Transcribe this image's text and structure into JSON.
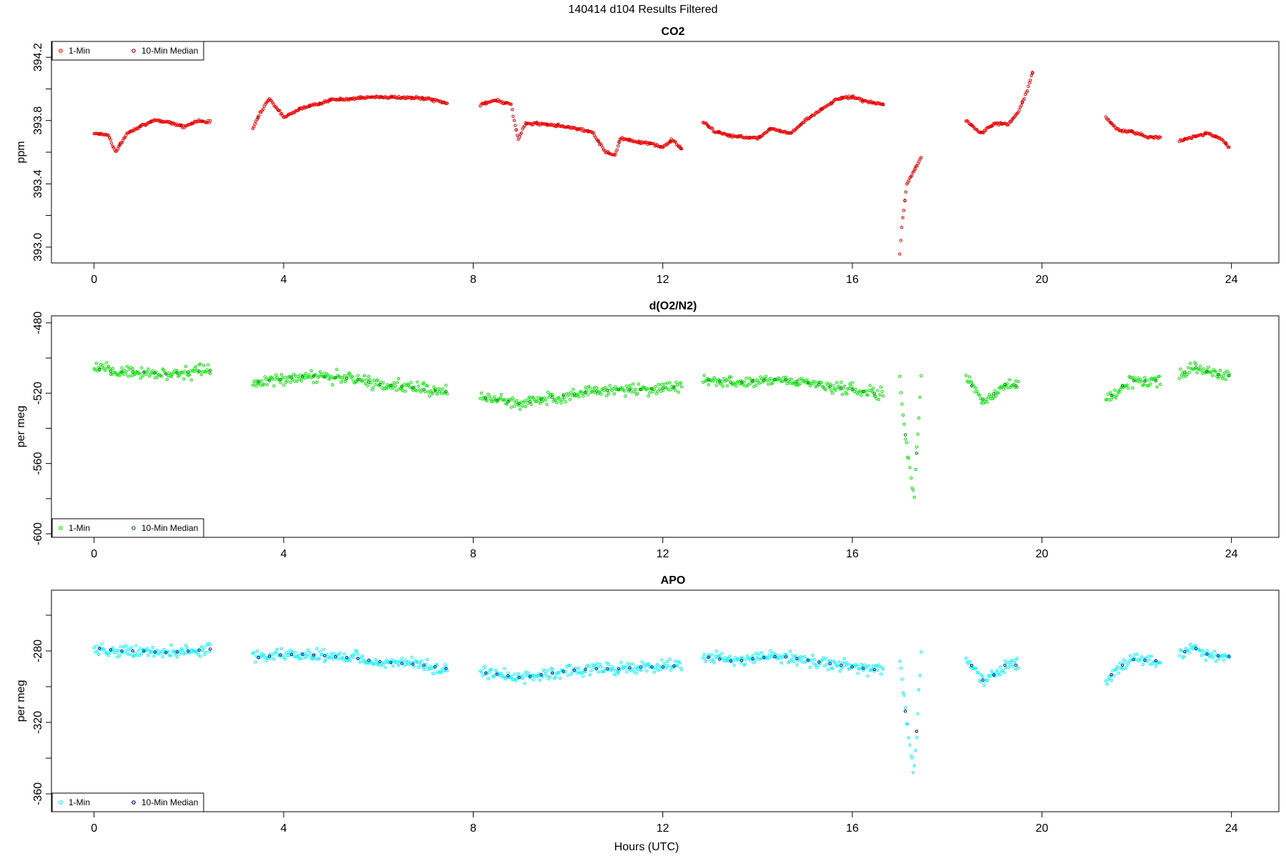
{
  "page_title": "140414   d104   Results Filtered",
  "xlabel": "Hours (UTC)",
  "legend_labels": {
    "one_min": "1-Min",
    "ten_min": "10-Min Median"
  },
  "chart_data": [
    {
      "type": "scatter",
      "title": "CO2",
      "ylabel": "ppm",
      "xlim": [
        -0.9,
        25
      ],
      "ylim": [
        392.9,
        394.3
      ],
      "xticks": [
        0,
        4,
        8,
        12,
        16,
        20,
        24
      ],
      "xtick_labels": [
        "0",
        "4",
        "8",
        "12",
        "16",
        "20",
        "24"
      ],
      "yticks": [
        393.0,
        393.4,
        393.8,
        394.2
      ],
      "ytick_labels": [
        "393.0",
        "393.4",
        "393.8",
        "394.2"
      ],
      "yminor": [
        393.2,
        393.6,
        394.0
      ],
      "legend": "top-left",
      "colors": {
        "one_min": "#ff0000",
        "ten_min": "#b00000"
      },
      "series": [
        {
          "name": "1-Min",
          "segments": [
            {
              "x": [
                0.0,
                0.3,
                0.45,
                0.7,
                1.0,
                1.3,
                1.6,
                1.9,
                2.2,
                2.45
              ],
              "y": [
                393.72,
                393.71,
                393.6,
                393.72,
                393.77,
                393.8,
                393.79,
                393.76,
                393.8,
                393.79
              ]
            },
            {
              "x": [
                3.35,
                3.5,
                3.7,
                3.85,
                4.0,
                4.3,
                5.0,
                6.0,
                7.0,
                7.45
              ],
              "y": [
                393.75,
                393.85,
                393.94,
                393.88,
                393.82,
                393.87,
                393.93,
                393.95,
                393.94,
                393.91
              ]
            },
            {
              "x": [
                8.15,
                8.5,
                8.8,
                8.95,
                9.1,
                9.5,
                10.0,
                10.5,
                10.8,
                11.0,
                11.1,
                11.4,
                11.8,
                12.0,
                12.2,
                12.4
              ],
              "y": [
                393.9,
                393.93,
                393.9,
                393.68,
                393.78,
                393.78,
                393.76,
                393.73,
                393.6,
                393.58,
                393.69,
                393.67,
                393.65,
                393.63,
                393.68,
                393.62
              ]
            },
            {
              "x": [
                12.85,
                13.1,
                13.5,
                14.0,
                14.3,
                14.7,
                15.0,
                15.4,
                15.7,
                16.0,
                16.3,
                16.65
              ],
              "y": [
                393.79,
                393.73,
                393.7,
                393.69,
                393.75,
                393.72,
                393.8,
                393.88,
                393.94,
                393.95,
                393.92,
                393.9
              ]
            },
            {
              "x": [
                17.0,
                17.05,
                17.15,
                17.3,
                17.45
              ],
              "y": [
                392.96,
                393.15,
                393.4,
                393.48,
                393.57
              ]
            },
            {
              "x": [
                18.4,
                18.7,
                19.0,
                19.3,
                19.5,
                19.7,
                19.8
              ],
              "y": [
                393.8,
                393.72,
                393.78,
                393.78,
                393.85,
                394.0,
                394.1
              ]
            },
            {
              "x": [
                21.35,
                21.6,
                21.9,
                22.2,
                22.5
              ],
              "y": [
                393.82,
                393.74,
                393.73,
                393.7,
                393.69
              ]
            },
            {
              "x": [
                22.9,
                23.2,
                23.5,
                23.8,
                23.95
              ],
              "y": [
                393.67,
                393.7,
                393.72,
                393.68,
                393.63
              ]
            }
          ]
        },
        {
          "name": "10-Min Median",
          "x": [],
          "y": []
        }
      ]
    },
    {
      "type": "scatter",
      "title": "d(O2/N2)",
      "ylabel": "per meg",
      "xlim": [
        -0.9,
        25
      ],
      "ylim": [
        -602,
        -476
      ],
      "xticks": [
        0,
        4,
        8,
        12,
        16,
        20,
        24
      ],
      "xtick_labels": [
        "0",
        "4",
        "8",
        "12",
        "16",
        "20",
        "24"
      ],
      "yticks": [
        -600,
        -560,
        -520,
        -480
      ],
      "ytick_labels": [
        "-600",
        "-560",
        "-520",
        "-480"
      ],
      "yminor": [
        -580,
        -540,
        -500
      ],
      "legend": "bottom-left",
      "colors": {
        "one_min": "#00ee00",
        "ten_min": "#007700"
      },
      "series": [
        {
          "name": "1-Min",
          "segments": [
            {
              "x": [
                0.0,
                0.5,
                1.0,
                1.5,
                2.0,
                2.45
              ],
              "y": [
                -506,
                -508,
                -508,
                -509,
                -508,
                -507
              ]
            },
            {
              "x": [
                3.35,
                4.0,
                4.5,
                5.0,
                5.5,
                6.0,
                6.5,
                7.0,
                7.45
              ],
              "y": [
                -514,
                -512,
                -510,
                -511,
                -512,
                -515,
                -516,
                -518,
                -519
              ]
            },
            {
              "x": [
                8.15,
                8.5,
                9.0,
                9.5,
                10.0,
                10.5,
                11.0,
                11.5,
                12.0,
                12.4
              ],
              "y": [
                -522,
                -524,
                -526,
                -523,
                -521,
                -519,
                -518,
                -518,
                -517,
                -516
              ]
            },
            {
              "x": [
                12.85,
                13.5,
                14.0,
                14.5,
                15.0,
                15.5,
                16.0,
                16.65
              ],
              "y": [
                -512,
                -514,
                -513,
                -512,
                -514,
                -516,
                -518,
                -521
              ]
            },
            {
              "x": [
                17.0,
                17.1,
                17.2,
                17.3,
                17.45
              ],
              "y": [
                -512,
                -540,
                -560,
                -580,
                -510
              ]
            },
            {
              "x": [
                18.4,
                18.8,
                19.2,
                19.5
              ],
              "y": [
                -512,
                -525,
                -515,
                -516
              ]
            },
            {
              "x": [
                21.35,
                21.7,
                22.0,
                22.3,
                22.5
              ],
              "y": [
                -524,
                -516,
                -512,
                -514,
                -512
              ]
            },
            {
              "x": [
                22.9,
                23.2,
                23.5,
                23.8,
                23.95
              ],
              "y": [
                -510,
                -505,
                -508,
                -510,
                -510
              ]
            }
          ]
        },
        {
          "name": "10-Min Median",
          "x": [],
          "y": []
        }
      ]
    },
    {
      "type": "scatter",
      "title": "APO",
      "ylabel": "per meg",
      "xlim": [
        -0.9,
        25
      ],
      "ylim": [
        -370,
        -246
      ],
      "xticks": [
        0,
        4,
        8,
        12,
        16,
        20,
        24
      ],
      "xtick_labels": [
        "0",
        "4",
        "8",
        "12",
        "16",
        "20",
        "24"
      ],
      "yticks": [
        -360,
        -320,
        -280
      ],
      "ytick_labels": [
        "-360",
        "-320",
        "-280"
      ],
      "yminor": [
        -340,
        -300,
        -260
      ],
      "legend": "bottom-left",
      "colors": {
        "one_min": "#00ffff",
        "ten_min": "#0000a0"
      },
      "series": [
        {
          "name": "1-Min",
          "segments": [
            {
              "x": [
                0.0,
                0.5,
                1.0,
                1.5,
                2.0,
                2.45
              ],
              "y": [
                -278,
                -280,
                -280,
                -281,
                -280,
                -279
              ]
            },
            {
              "x": [
                3.35,
                4.0,
                4.5,
                5.0,
                5.5,
                6.0,
                6.5,
                7.0,
                7.45
              ],
              "y": [
                -284,
                -282,
                -282,
                -283,
                -284,
                -286,
                -287,
                -288,
                -290
              ]
            },
            {
              "x": [
                8.15,
                8.5,
                9.0,
                9.5,
                10.0,
                10.5,
                11.0,
                11.5,
                12.0,
                12.4
              ],
              "y": [
                -292,
                -293,
                -295,
                -293,
                -291,
                -290,
                -290,
                -289,
                -289,
                -288
              ]
            },
            {
              "x": [
                12.85,
                13.5,
                14.0,
                14.5,
                15.0,
                15.5,
                16.0,
                16.65
              ],
              "y": [
                -283,
                -286,
                -284,
                -283,
                -285,
                -287,
                -289,
                -291
              ]
            },
            {
              "x": [
                17.0,
                17.1,
                17.2,
                17.3,
                17.45
              ],
              "y": [
                -285,
                -310,
                -330,
                -350,
                -282
              ]
            },
            {
              "x": [
                18.4,
                18.8,
                19.2,
                19.5
              ],
              "y": [
                -284,
                -298,
                -288,
                -288
              ]
            },
            {
              "x": [
                21.35,
                21.7,
                22.0,
                22.3,
                22.5
              ],
              "y": [
                -296,
                -288,
                -284,
                -286,
                -285
              ]
            },
            {
              "x": [
                22.9,
                23.2,
                23.5,
                23.8,
                23.95
              ],
              "y": [
                -282,
                -278,
                -282,
                -283,
                -283
              ]
            }
          ]
        },
        {
          "name": "10-Min Median",
          "x": [],
          "y": []
        }
      ]
    }
  ]
}
